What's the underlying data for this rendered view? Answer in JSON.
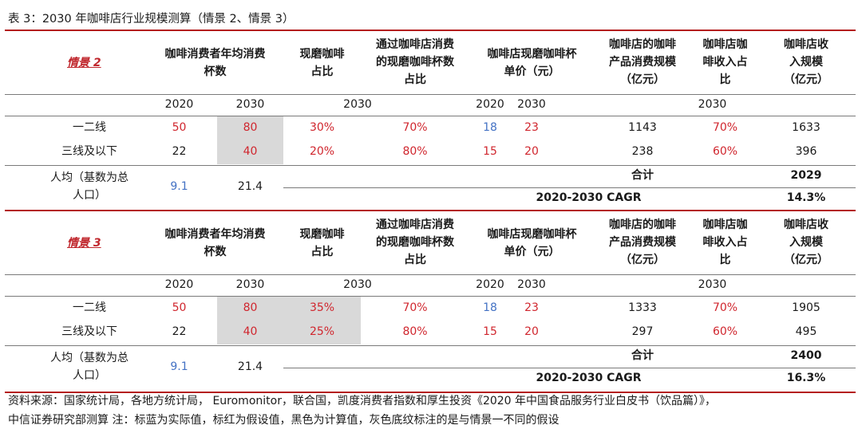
{
  "title": "表 3：2030 年咖啡店行业规模测算（情景 2、情景 3）",
  "headers": {
    "cups_line1": "咖啡消费者年均消费",
    "cups_line2": "杯数",
    "fresh_line1": "现磨咖啡",
    "fresh_line2": "占比",
    "store_line1": "通过咖啡店消费",
    "store_line2": "的现磨咖啡杯数",
    "store_line3": "占比",
    "price_line1": "咖啡店现磨咖啡杯",
    "price_line2": "单价（元）",
    "product_line1": "咖啡店的咖啡",
    "product_line2": "产品消费规模",
    "product_line3": "（亿元）",
    "share_line1": "咖啡店咖",
    "share_line2": "啡收入占",
    "share_line3": "比",
    "rev_line1": "咖啡店收",
    "rev_line2": "入规模",
    "rev_line3": "（亿元）"
  },
  "years": {
    "y2020": "2020",
    "y2030": "2030"
  },
  "scenarios": [
    {
      "name": "情景 2",
      "rows": [
        {
          "label": "一二线",
          "cups2020": "50",
          "cups2030": "80",
          "fresh": "30%",
          "store": "70%",
          "price2020": "18",
          "price2030": "23",
          "product": "1143",
          "share": "70%",
          "revenue": "1633"
        },
        {
          "label": "三线及以下",
          "cups2020": "22",
          "cups2030": "40",
          "fresh": "20%",
          "store": "80%",
          "price2020": "15",
          "price2030": "20",
          "product": "238",
          "share": "60%",
          "revenue": "396"
        }
      ],
      "percap_label1": "人均（基数为总",
      "percap_label2": "人口）",
      "percap2020": "9.1",
      "percap2030": "21.4",
      "total_label": "合计",
      "total_value": "2029",
      "cagr_label": "2020-2030 CAGR",
      "cagr_value": "14.3%"
    },
    {
      "name": "情景 3",
      "rows": [
        {
          "label": "一二线",
          "cups2020": "50",
          "cups2030": "80",
          "fresh": "35%",
          "store": "70%",
          "price2020": "18",
          "price2030": "23",
          "product": "1333",
          "share": "70%",
          "revenue": "1905"
        },
        {
          "label": "三线及以下",
          "cups2020": "22",
          "cups2030": "40",
          "fresh": "25%",
          "store": "80%",
          "price2020": "15",
          "price2030": "20",
          "product": "297",
          "share": "60%",
          "revenue": "495"
        }
      ],
      "percap_label1": "人均（基数为总",
      "percap_label2": "人口）",
      "percap2020": "9.1",
      "percap2030": "21.4",
      "total_label": "合计",
      "total_value": "2400",
      "cagr_label": "2020-2030 CAGR",
      "cagr_value": "16.3%"
    }
  ],
  "source_line1": "资料来源：国家统计局，各地方统计局， Euromonitor，联合国，凯度消费者指数和厚生投资《2020 年中国食品服务行业白皮书（饮品篇）》，",
  "source_line2": "中信证券研究部测算 注：标蓝为实际值，标红为假设值，黑色为计算值，灰色底纹标注的是与情景一不同的假设"
}
